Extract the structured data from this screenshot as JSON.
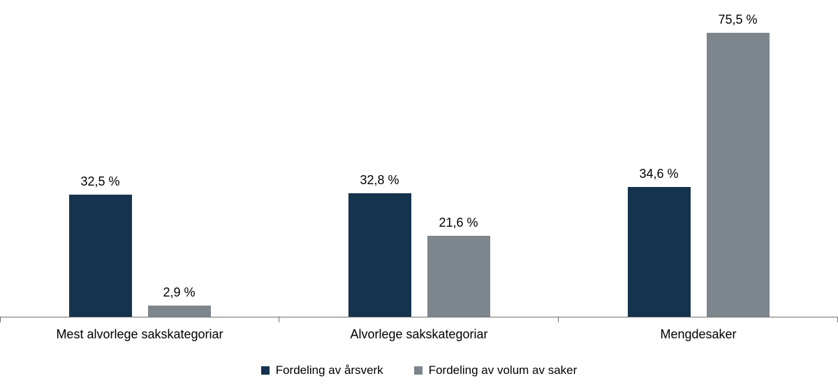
{
  "chart_data": {
    "type": "bar",
    "categories": [
      "Mest alvorlege sakskategoriar",
      "Alvorlege sakskategoriar",
      "Mengdesaker"
    ],
    "series": [
      {
        "name": "Fordeling av årsverk",
        "color": "#16334E",
        "values": [
          32.5,
          32.8,
          34.6
        ]
      },
      {
        "name": "Fordeling av volum av saker",
        "color": "#7D868C",
        "values": [
          2.9,
          21.6,
          75.5
        ]
      }
    ],
    "value_labels": [
      [
        "32,5 %",
        "2,9 %"
      ],
      [
        "32,8 %",
        "21,6 %"
      ],
      [
        "34,6 %",
        "75,5 %"
      ]
    ],
    "title": "",
    "xlabel": "",
    "ylabel": "",
    "ylim": [
      0,
      80
    ],
    "grid": false,
    "legend_position": "bottom",
    "axis_color": "#6e6e6e",
    "background": "#ffffff"
  }
}
